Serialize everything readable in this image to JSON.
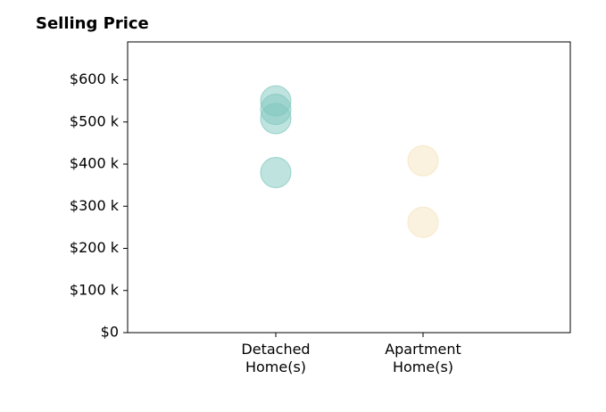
{
  "chart_data": {
    "type": "scatter",
    "title": "Selling Price",
    "xlabel": "",
    "ylabel": "",
    "categories": [
      "Detached\nHome(s)",
      "Apartment\nHome(s)"
    ],
    "yticks": [
      "$0",
      "$100 k",
      "$200 k",
      "$300 k",
      "$400 k",
      "$500 k",
      "$600 k"
    ],
    "ylim": [
      0,
      690000
    ],
    "grid": false,
    "series": [
      {
        "category": "Detached\nHome(s)",
        "color": "#7fc8bd",
        "values": [
          550000,
          530000,
          508000,
          380000
        ]
      },
      {
        "category": "Apartment\nHome(s)",
        "color": "#f6e4bd",
        "values": [
          408000,
          262000
        ]
      }
    ]
  }
}
